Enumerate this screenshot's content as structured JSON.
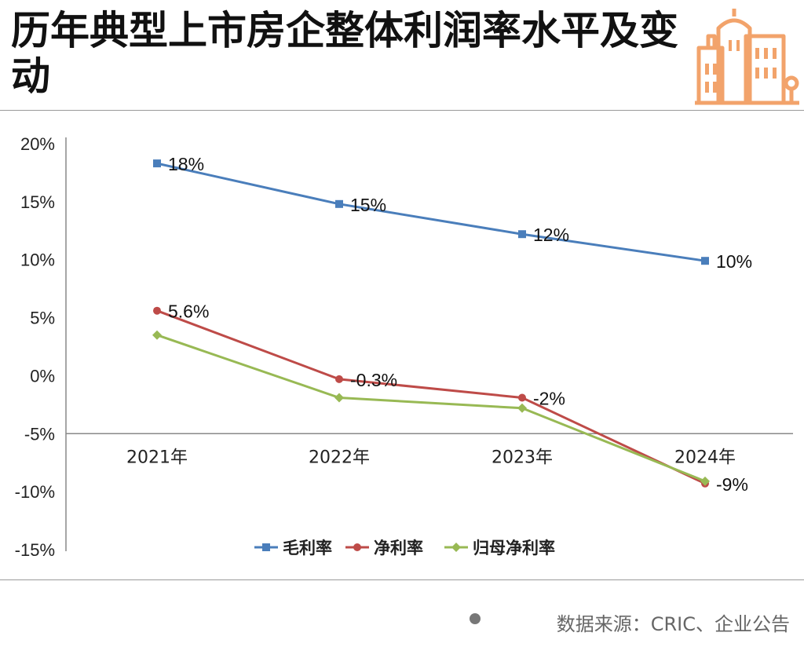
{
  "title": "历年典型上市房企整体利润率水平及变动",
  "source": "数据来源：CRIC、企业公告",
  "colors": {
    "gross": "#4a7ebb",
    "net": "#be4b48",
    "parent": "#98b954",
    "logo": "#f2a36b"
  },
  "icons": {
    "logo": "building-icon",
    "source": "dot-icon"
  },
  "chart_data": {
    "type": "line",
    "categories": [
      "2021年",
      "2022年",
      "2023年",
      "2024年"
    ],
    "ylim": [
      -15,
      20
    ],
    "yticks": [
      "20%",
      "15%",
      "10%",
      "5%",
      "0%",
      "-5%",
      "-10%",
      "-15%"
    ],
    "legend_position": "bottom",
    "series": [
      {
        "name": "毛利率",
        "values": [
          18.3,
          14.8,
          12.2,
          9.9
        ],
        "labels": [
          "18%",
          "15%",
          "12%",
          "10%"
        ]
      },
      {
        "name": "净利率",
        "values": [
          5.6,
          -0.3,
          -1.9,
          -9.3
        ],
        "labels": [
          "5.6%",
          "-0.3%",
          "-2%",
          "-9%"
        ]
      },
      {
        "name": "归母净利率",
        "values": [
          3.5,
          -1.9,
          -2.8,
          -9.1
        ],
        "labels": [
          "",
          "",
          "",
          ""
        ]
      }
    ]
  }
}
